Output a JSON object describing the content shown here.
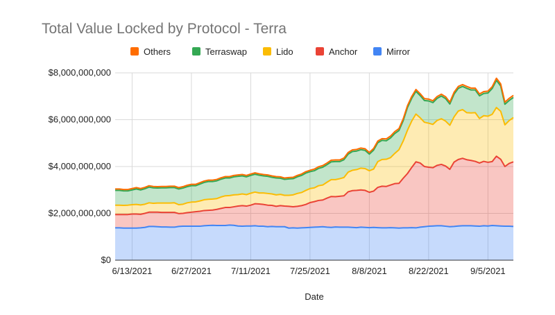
{
  "chart_data": {
    "type": "area",
    "stacked": true,
    "title": "Total Value Locked by Protocol - Terra",
    "xlabel": "Date",
    "ylabel": "",
    "ylim": [
      0,
      8000000000
    ],
    "y_ticks": [
      0,
      2000000000,
      4000000000,
      6000000000,
      8000000000
    ],
    "y_tick_labels": [
      "$0",
      "$2,000,000,000",
      "$4,000,000,000",
      "$6,000,000,000",
      "$8,000,000,000"
    ],
    "x_tick_labels": [
      "6/13/2021",
      "6/27/2021",
      "7/11/2021",
      "7/25/2021",
      "8/8/2021",
      "8/22/2021",
      "9/5/2021"
    ],
    "x_tick_indices": [
      4,
      18,
      32,
      46,
      60,
      74,
      88
    ],
    "grid": true,
    "legend_position": "top",
    "legend_order": [
      "Others",
      "Terraswap",
      "Lido",
      "Anchor",
      "Mirror"
    ],
    "x_start": "6/9/2021",
    "x_end": "9/8/2021",
    "series": [
      {
        "name": "Mirror",
        "color": "#4285f4",
        "values": [
          1380000000.0,
          1380000000.0,
          1370000000.0,
          1370000000.0,
          1370000000.0,
          1370000000.0,
          1380000000.0,
          1400000000.0,
          1440000000.0,
          1440000000.0,
          1430000000.0,
          1420000000.0,
          1420000000.0,
          1410000000.0,
          1410000000.0,
          1440000000.0,
          1450000000.0,
          1450000000.0,
          1450000000.0,
          1450000000.0,
          1450000000.0,
          1470000000.0,
          1480000000.0,
          1490000000.0,
          1480000000.0,
          1480000000.0,
          1480000000.0,
          1500000000.0,
          1490000000.0,
          1460000000.0,
          1450000000.0,
          1460000000.0,
          1460000000.0,
          1470000000.0,
          1450000000.0,
          1450000000.0,
          1430000000.0,
          1440000000.0,
          1430000000.0,
          1430000000.0,
          1430000000.0,
          1370000000.0,
          1380000000.0,
          1370000000.0,
          1380000000.0,
          1390000000.0,
          1400000000.0,
          1410000000.0,
          1420000000.0,
          1430000000.0,
          1410000000.0,
          1400000000.0,
          1420000000.0,
          1410000000.0,
          1410000000.0,
          1410000000.0,
          1400000000.0,
          1390000000.0,
          1410000000.0,
          1400000000.0,
          1390000000.0,
          1400000000.0,
          1390000000.0,
          1380000000.0,
          1380000000.0,
          1390000000.0,
          1380000000.0,
          1370000000.0,
          1380000000.0,
          1380000000.0,
          1390000000.0,
          1380000000.0,
          1410000000.0,
          1430000000.0,
          1450000000.0,
          1460000000.0,
          1470000000.0,
          1470000000.0,
          1450000000.0,
          1430000000.0,
          1440000000.0,
          1460000000.0,
          1470000000.0,
          1470000000.0,
          1470000000.0,
          1460000000.0,
          1450000000.0,
          1470000000.0,
          1460000000.0,
          1480000000.0,
          1470000000.0,
          1460000000.0,
          1450000000.0,
          1450000000.0,
          1440000000.0
        ]
      },
      {
        "name": "Anchor",
        "color": "#ea4335",
        "values": [
          570000000.0,
          570000000.0,
          580000000.0,
          580000000.0,
          600000000.0,
          600000000.0,
          580000000.0,
          600000000.0,
          610000000.0,
          610000000.0,
          620000000.0,
          620000000.0,
          620000000.0,
          630000000.0,
          630000000.0,
          550000000.0,
          550000000.0,
          580000000.0,
          600000000.0,
          620000000.0,
          640000000.0,
          650000000.0,
          650000000.0,
          650000000.0,
          690000000.0,
          730000000.0,
          770000000.0,
          750000000.0,
          790000000.0,
          850000000.0,
          880000000.0,
          850000000.0,
          890000000.0,
          940000000.0,
          950000000.0,
          930000000.0,
          920000000.0,
          900000000.0,
          870000000.0,
          900000000.0,
          880000000.0,
          930000000.0,
          900000000.0,
          930000000.0,
          950000000.0,
          990000000.0,
          1060000000.0,
          1090000000.0,
          1130000000.0,
          1140000000.0,
          1240000000.0,
          1320000000.0,
          1290000000.0,
          1320000000.0,
          1340000000.0,
          1510000000.0,
          1570000000.0,
          1590000000.0,
          1590000000.0,
          1580000000.0,
          1510000000.0,
          1550000000.0,
          1720000000.0,
          1780000000.0,
          1770000000.0,
          1820000000.0,
          1890000000.0,
          1910000000.0,
          2120000000.0,
          2320000000.0,
          2570000000.0,
          2820000000.0,
          2740000000.0,
          2570000000.0,
          2520000000.0,
          2490000000.0,
          2580000000.0,
          2620000000.0,
          2570000000.0,
          2450000000.0,
          2750000000.0,
          2840000000.0,
          2880000000.0,
          2820000000.0,
          2790000000.0,
          2760000000.0,
          2700000000.0,
          2750000000.0,
          2720000000.0,
          2730000000.0,
          2970000000.0,
          2850000000.0,
          2550000000.0,
          2680000000.0,
          2760000000.0
        ]
      },
      {
        "name": "Lido",
        "color": "#fbbc04",
        "values": [
          400000000.0,
          400000000.0,
          390000000.0,
          400000000.0,
          400000000.0,
          410000000.0,
          400000000.0,
          390000000.0,
          400000000.0,
          380000000.0,
          390000000.0,
          400000000.0,
          400000000.0,
          400000000.0,
          410000000.0,
          380000000.0,
          390000000.0,
          420000000.0,
          430000000.0,
          420000000.0,
          440000000.0,
          460000000.0,
          470000000.0,
          470000000.0,
          460000000.0,
          490000000.0,
          500000000.0,
          510000000.0,
          510000000.0,
          490000000.0,
          500000000.0,
          490000000.0,
          510000000.0,
          500000000.0,
          470000000.0,
          490000000.0,
          500000000.0,
          490000000.0,
          490000000.0,
          480000000.0,
          460000000.0,
          470000000.0,
          510000000.0,
          550000000.0,
          560000000.0,
          600000000.0,
          600000000.0,
          590000000.0,
          630000000.0,
          640000000.0,
          680000000.0,
          720000000.0,
          730000000.0,
          750000000.0,
          780000000.0,
          840000000.0,
          870000000.0,
          890000000.0,
          930000000.0,
          930000000.0,
          920000000.0,
          940000000.0,
          1100000000.0,
          1140000000.0,
          1160000000.0,
          1170000000.0,
          1290000000.0,
          1440000000.0,
          1590000000.0,
          1850000000.0,
          1980000000.0,
          2040000000.0,
          1930000000.0,
          1890000000.0,
          1880000000.0,
          1850000000.0,
          1920000000.0,
          1950000000.0,
          1920000000.0,
          1880000000.0,
          1930000000.0,
          2070000000.0,
          2080000000.0,
          2010000000.0,
          2030000000.0,
          2080000000.0,
          1900000000.0,
          1950000000.0,
          1970000000.0,
          2020000000.0,
          2080000000.0,
          2050000000.0,
          1780000000.0,
          1830000000.0,
          1890000000.0
        ]
      },
      {
        "name": "Terraswap",
        "color": "#34a853",
        "values": [
          630000000.0,
          630000000.0,
          620000000.0,
          610000000.0,
          630000000.0,
          660000000.0,
          640000000.0,
          660000000.0,
          670000000.0,
          660000000.0,
          640000000.0,
          650000000.0,
          650000000.0,
          660000000.0,
          650000000.0,
          670000000.0,
          690000000.0,
          690000000.0,
          700000000.0,
          690000000.0,
          720000000.0,
          740000000.0,
          760000000.0,
          750000000.0,
          760000000.0,
          760000000.0,
          760000000.0,
          750000000.0,
          770000000.0,
          780000000.0,
          770000000.0,
          760000000.0,
          760000000.0,
          760000000.0,
          760000000.0,
          730000000.0,
          730000000.0,
          710000000.0,
          720000000.0,
          690000000.0,
          680000000.0,
          700000000.0,
          690000000.0,
          710000000.0,
          730000000.0,
          740000000.0,
          720000000.0,
          730000000.0,
          740000000.0,
          760000000.0,
          750000000.0,
          760000000.0,
          770000000.0,
          730000000.0,
          760000000.0,
          770000000.0,
          800000000.0,
          790000000.0,
          790000000.0,
          780000000.0,
          710000000.0,
          810000000.0,
          810000000.0,
          820000000.0,
          790000000.0,
          840000000.0,
          850000000.0,
          820000000.0,
          870000000.0,
          970000000.0,
          970000000.0,
          970000000.0,
          950000000.0,
          930000000.0,
          950000000.0,
          930000000.0,
          940000000.0,
          970000000.0,
          960000000.0,
          910000000.0,
          970000000.0,
          970000000.0,
          990000000.0,
          1040000000.0,
          980000000.0,
          970000000.0,
          970000000.0,
          950000000.0,
          990000000.0,
          1100000000.0,
          1160000000.0,
          1080000000.0,
          880000000.0,
          860000000.0,
          860000000.0
        ]
      },
      {
        "name": "Others",
        "color": "#ff6d01",
        "values": [
          60000000.0,
          60000000.0,
          60000000.0,
          60000000.0,
          60000000.0,
          60000000.0,
          60000000.0,
          60000000.0,
          60000000.0,
          60000000.0,
          60000000.0,
          60000000.0,
          60000000.0,
          60000000.0,
          60000000.0,
          60000000.0,
          60000000.0,
          60000000.0,
          60000000.0,
          60000000.0,
          60000000.0,
          60000000.0,
          60000000.0,
          60000000.0,
          60000000.0,
          60000000.0,
          60000000.0,
          60000000.0,
          60000000.0,
          60000000.0,
          60000000.0,
          60000000.0,
          60000000.0,
          60000000.0,
          60000000.0,
          60000000.0,
          60000000.0,
          60000000.0,
          60000000.0,
          60000000.0,
          60000000.0,
          60000000.0,
          60000000.0,
          60000000.0,
          60000000.0,
          60000000.0,
          60000000.0,
          70000000.0,
          70000000.0,
          70000000.0,
          70000000.0,
          70000000.0,
          70000000.0,
          70000000.0,
          70000000.0,
          70000000.0,
          70000000.0,
          70000000.0,
          70000000.0,
          70000000.0,
          70000000.0,
          70000000.0,
          70000000.0,
          70000000.0,
          80000000.0,
          80000000.0,
          80000000.0,
          80000000.0,
          80000000.0,
          80000000.0,
          80000000.0,
          80000000.0,
          80000000.0,
          80000000.0,
          80000000.0,
          80000000.0,
          80000000.0,
          80000000.0,
          80000000.0,
          80000000.0,
          80000000.0,
          80000000.0,
          80000000.0,
          80000000.0,
          80000000.0,
          80000000.0,
          80000000.0,
          80000000.0,
          80000000.0,
          80000000.0,
          90000000.0,
          90000000.0,
          90000000.0,
          90000000.0,
          90000000.0
        ]
      }
    ]
  }
}
